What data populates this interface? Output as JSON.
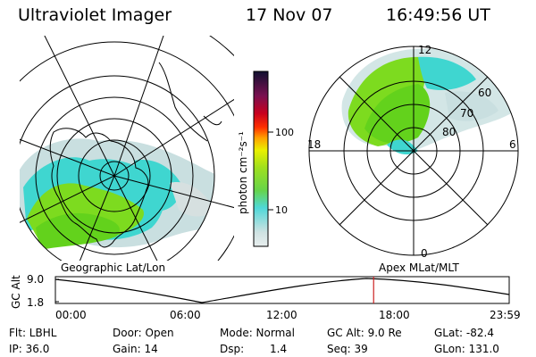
{
  "header": {
    "title": "Ultraviolet Imager",
    "date": "17 Nov 07",
    "time": "16:49:56 UT"
  },
  "colors": {
    "aurora_green": "#7ddb1f",
    "aurora_cyan": "#3fd6d0",
    "aurora_pale": "#c9dfe0",
    "time_marker": "#cc2222"
  },
  "colorbar": {
    "label": "photon cm⁻²s⁻¹",
    "ticks": [
      "100",
      "10"
    ]
  },
  "right_panel": {
    "mlt_labels": {
      "top": "12",
      "left": "18",
      "right": "6",
      "bottom": "0"
    },
    "lat_labels": [
      "60",
      "70",
      "80"
    ],
    "projection_label": "Apex MLat/MLT"
  },
  "left_panel": {
    "projection_label": "Geographic Lat/Lon"
  },
  "altitude_plot": {
    "ylabel": "GC Alt",
    "yticks": [
      "9.0",
      "1.8"
    ],
    "xticks": [
      "00:00",
      "06:00",
      "12:00",
      "18:00",
      "23:59"
    ],
    "marker_time_hours": 16.83
  },
  "info": {
    "flt": "Flt: LBHL",
    "door": "Door: Open",
    "mode": "Mode: Normal",
    "gc_alt": "GC Alt: 9.0 Re",
    "glat": "GLat: -82.4",
    "ip": "IP: 36.0",
    "gain": "Gain: 14",
    "dsp_label": "Dsp:",
    "dsp_value": "1.4",
    "seq": "Seq: 39",
    "glon": "GLon: 131.0"
  }
}
